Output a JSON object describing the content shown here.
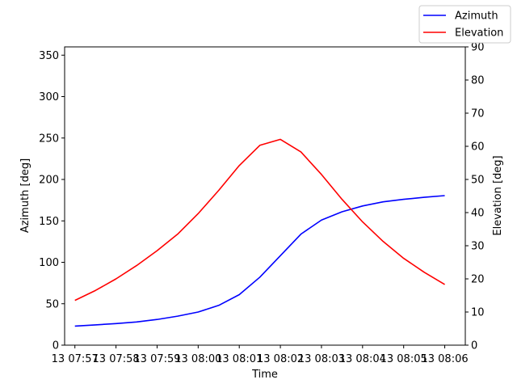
{
  "chart_data": {
    "type": "line",
    "xlabel": "Time",
    "ylabel_left": "Azimuth [deg]",
    "ylabel_right": "Elevation [deg]",
    "x_ticks": [
      "13 07:57",
      "13 07:58",
      "13 07:59",
      "13 08:00",
      "13 08:01",
      "13 08:02",
      "13 08:03",
      "13 08:04",
      "13 08:05",
      "13 08:06"
    ],
    "x": [
      "07:57:00",
      "07:57:30",
      "07:58:00",
      "07:58:30",
      "07:59:00",
      "07:59:30",
      "08:00:00",
      "08:00:30",
      "08:01:00",
      "08:01:30",
      "08:02:00",
      "08:02:30",
      "08:03:00",
      "08:03:30",
      "08:04:00",
      "08:04:30",
      "08:05:00",
      "08:05:30",
      "08:06:00"
    ],
    "xlim": [
      "07:56:45",
      "08:06:30"
    ],
    "ylim_left": [
      0,
      360
    ],
    "yticks_left": [
      0,
      50,
      100,
      150,
      200,
      250,
      300,
      350
    ],
    "ylim_right": [
      0,
      90
    ],
    "yticks_right": [
      0,
      10,
      20,
      30,
      40,
      50,
      60,
      70,
      80,
      90
    ],
    "series": [
      {
        "name": "Azimuth",
        "axis": "left",
        "color": "#0000ff",
        "values": [
          23,
          24.5,
          26,
          28,
          31,
          35,
          40,
          48,
          61,
          82,
          108,
          134,
          151,
          161,
          168,
          173,
          176,
          178.5,
          180.5
        ]
      },
      {
        "name": "Elevation",
        "axis": "right",
        "color": "#ff0000",
        "values": [
          13.5,
          16.5,
          20,
          24,
          28.5,
          33.5,
          39.7,
          46.7,
          54.2,
          60.3,
          62.1,
          58.3,
          51.5,
          44,
          37.2,
          31.3,
          26.2,
          22,
          18.3
        ]
      }
    ],
    "grid": false,
    "legend_position": "top-right"
  }
}
